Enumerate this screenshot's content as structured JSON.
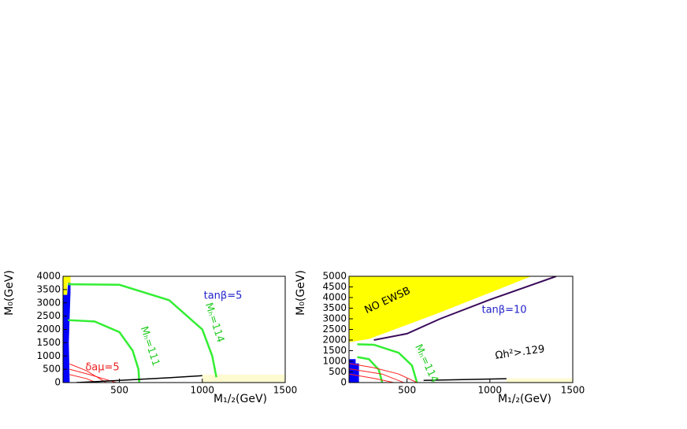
{
  "chart_data": [
    {
      "type": "line",
      "xlabel": "M₁/₂(GeV)",
      "ylabel": "M₀(GeV)",
      "xlim": [
        160,
        1500
      ],
      "ylim": [
        0,
        4000
      ],
      "xticks": [
        500,
        1000,
        1500
      ],
      "yticks": [
        0,
        500,
        1000,
        1500,
        2000,
        2500,
        3000,
        3500,
        4000
      ],
      "areas": [
        {
          "color": "#ffff00",
          "x": [
            160,
            205,
            205,
            185,
            185,
            160
          ],
          "values": [
            4000,
            4000,
            3750,
            3750,
            3300,
            3300
          ]
        },
        {
          "color": "#0000ff",
          "x": [
            160,
            200,
            195,
            200,
            205,
            205,
            190,
            185,
            160
          ],
          "values": [
            0,
            0,
            1500,
            2500,
            3400,
            3750,
            3750,
            3300,
            3300
          ]
        },
        {
          "color": "#fffbd0",
          "x": [
            1000,
            1500,
            1500,
            1000
          ],
          "values": [
            0,
            0,
            300,
            300
          ]
        }
      ],
      "series": [
        {
          "color": "#33ee33",
          "width": 2.5,
          "x": [
            190,
            500,
            800,
            1000,
            1060,
            1085
          ],
          "values": [
            3700,
            3680,
            3100,
            2000,
            1000,
            200
          ]
        },
        {
          "color": "#33ee33",
          "width": 2.5,
          "x": [
            190,
            350,
            500,
            580,
            615,
            620
          ],
          "values": [
            2350,
            2300,
            1900,
            1200,
            500,
            0
          ]
        },
        {
          "color": "#ff2020",
          "width": 1,
          "x": [
            200,
            300,
            420
          ],
          "values": [
            700,
            450,
            0
          ]
        },
        {
          "color": "#ff2020",
          "width": 1,
          "x": [
            200,
            320,
            480
          ],
          "values": [
            500,
            300,
            0
          ]
        },
        {
          "color": "#ff2020",
          "width": 1,
          "x": [
            200,
            300,
            360
          ],
          "values": [
            300,
            150,
            0
          ]
        },
        {
          "color": "#000000",
          "width": 1.5,
          "x": [
            240,
            500,
            800,
            1000
          ],
          "values": [
            0,
            80,
            180,
            260
          ]
        }
      ],
      "annotations": [
        {
          "text": "tanβ=5",
          "color": "#2222cc"
        },
        {
          "text": "Mₕ=111",
          "color": "#22cc22"
        },
        {
          "text": "Mₕ=114",
          "color": "#22cc22"
        },
        {
          "text": "δaμ=5",
          "color": "#ee2020"
        }
      ]
    },
    {
      "type": "line",
      "xlabel": "M₁/₂(GeV)",
      "ylabel": "M₀(GeV)",
      "xlim": [
        150,
        1500
      ],
      "ylim": [
        0,
        5000
      ],
      "xticks": [
        500,
        1000,
        1500
      ],
      "yticks": [
        0,
        500,
        1000,
        1500,
        2000,
        2500,
        3000,
        3500,
        4000,
        4500,
        5000
      ],
      "areas": [
        {
          "color": "#ffff00",
          "x": [
            150,
            270,
            700,
            1250,
            150
          ],
          "values": [
            1900,
            2050,
            3300,
            5000,
            5000
          ]
        },
        {
          "color": "#0000ff",
          "x": [
            150,
            210,
            210,
            190,
            190,
            150
          ],
          "values": [
            0,
            0,
            900,
            900,
            1100,
            1100
          ]
        },
        {
          "color": "#fffbd0",
          "x": [
            1100,
            1500,
            1500,
            1100
          ],
          "values": [
            0,
            0,
            200,
            200
          ]
        }
      ],
      "series": [
        {
          "color": "#3a0a5a",
          "width": 2,
          "x": [
            300,
            500,
            700,
            1000,
            1400
          ],
          "values": [
            2000,
            2300,
            3000,
            3900,
            5000
          ]
        },
        {
          "color": "#33ee33",
          "width": 2.5,
          "x": [
            200,
            300,
            450,
            530,
            560
          ],
          "values": [
            1800,
            1780,
            1400,
            800,
            0
          ]
        },
        {
          "color": "#33ee33",
          "width": 2.5,
          "x": [
            200,
            270,
            330,
            350
          ],
          "values": [
            1200,
            1100,
            600,
            0
          ]
        },
        {
          "color": "#ff2020",
          "width": 1,
          "x": [
            150,
            300,
            450,
            560
          ],
          "values": [
            900,
            700,
            400,
            0
          ]
        },
        {
          "color": "#ff2020",
          "width": 1,
          "x": [
            150,
            350,
            480
          ],
          "values": [
            650,
            400,
            0
          ]
        },
        {
          "color": "#ff2020",
          "width": 1,
          "x": [
            150,
            300,
            420
          ],
          "values": [
            400,
            200,
            0
          ]
        },
        {
          "color": "#000000",
          "width": 1.5,
          "x": [
            600,
            1100
          ],
          "values": [
            100,
            180
          ]
        }
      ],
      "annotations": [
        {
          "text": "NO EWSB",
          "color": "#000000"
        },
        {
          "text": "tanβ=10",
          "color": "#2222cc"
        },
        {
          "text": "Ωh²>.129",
          "color": "#000000"
        },
        {
          "text": "Mₕ=114",
          "color": "#22cc22"
        }
      ]
    }
  ]
}
